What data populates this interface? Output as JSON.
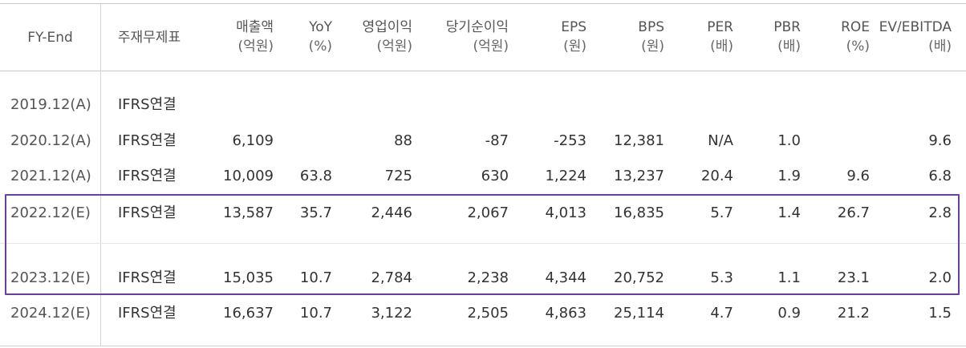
{
  "headers": {
    "fy": "FY-End",
    "fs": "주재무제표",
    "sales": {
      "title": "매출액",
      "unit": "(억원)"
    },
    "yoy": {
      "title": "YoY",
      "unit": "(%)"
    },
    "op": {
      "title": "영업이익",
      "unit": "(억원)"
    },
    "net": {
      "title": "당기순이익",
      "unit": "(억원)"
    },
    "eps": {
      "title": "EPS",
      "unit": "(원)"
    },
    "bps": {
      "title": "BPS",
      "unit": "(원)"
    },
    "per": {
      "title": "PER",
      "unit": "(배)"
    },
    "pbr": {
      "title": "PBR",
      "unit": "(배)"
    },
    "roe": {
      "title": "ROE",
      "unit": "(%)"
    },
    "ev": {
      "title": "EV/EBITDA",
      "unit": "(배)"
    }
  },
  "rows": [
    {
      "fy": "2019.12(A)",
      "fs": "IFRS연결",
      "sales": "",
      "yoy": "",
      "op": "",
      "net": "",
      "eps": "",
      "bps": "",
      "per": "",
      "pbr": "",
      "roe": "",
      "ev": ""
    },
    {
      "fy": "2020.12(A)",
      "fs": "IFRS연결",
      "sales": "6,109",
      "yoy": "",
      "op": "88",
      "net": "-87",
      "eps": "-253",
      "bps": "12,381",
      "per": "N/A",
      "pbr": "1.0",
      "roe": "",
      "ev": "9.6"
    },
    {
      "fy": "2021.12(A)",
      "fs": "IFRS연결",
      "sales": "10,009",
      "yoy": "63.8",
      "op": "725",
      "net": "630",
      "eps": "1,224",
      "bps": "13,237",
      "per": "20.4",
      "pbr": "1.9",
      "roe": "9.6",
      "ev": "6.8"
    },
    {
      "fy": "2022.12(E)",
      "fs": "IFRS연결",
      "sales": "13,587",
      "yoy": "35.7",
      "op": "2,446",
      "net": "2,067",
      "eps": "4,013",
      "bps": "16,835",
      "per": "5.7",
      "pbr": "1.4",
      "roe": "26.7",
      "ev": "2.8"
    },
    {
      "fy": "2023.12(E)",
      "fs": "IFRS연결",
      "sales": "15,035",
      "yoy": "10.7",
      "op": "2,784",
      "net": "2,238",
      "eps": "4,344",
      "bps": "20,752",
      "per": "5.3",
      "pbr": "1.1",
      "roe": "23.1",
      "ev": "2.0"
    },
    {
      "fy": "2024.12(E)",
      "fs": "IFRS연결",
      "sales": "16,637",
      "yoy": "10.7",
      "op": "3,122",
      "net": "2,505",
      "eps": "4,863",
      "bps": "25,114",
      "per": "4.7",
      "pbr": "0.9",
      "roe": "21.2",
      "ev": "1.5"
    }
  ],
  "highlight_color": "#6a3fa0"
}
